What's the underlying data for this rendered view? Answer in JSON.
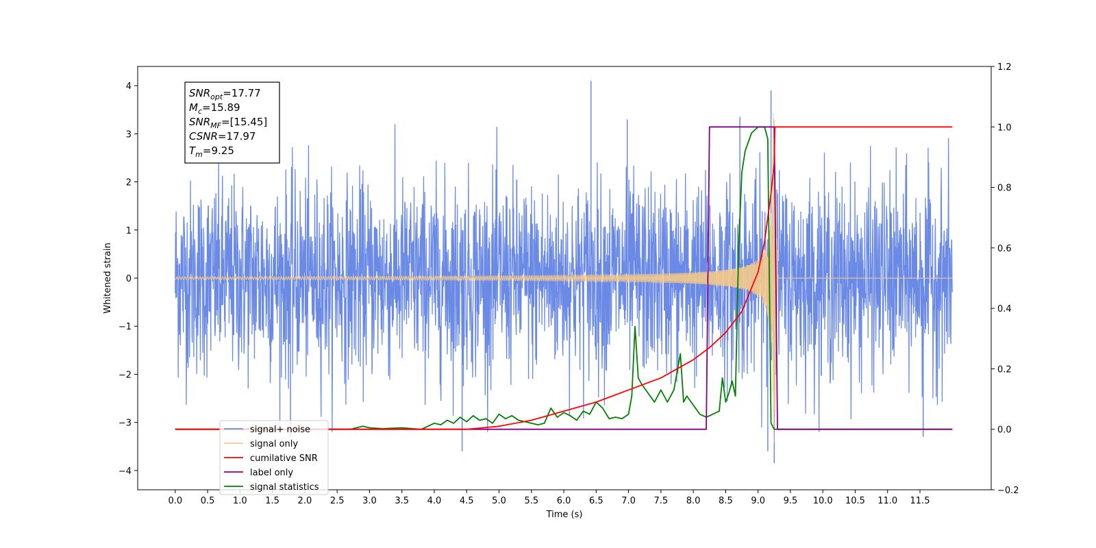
{
  "chart_data": {
    "type": "line",
    "xlabel": "Time (s)",
    "ylabel": "Whitened strain",
    "xlim": [
      -0.58,
      12.6
    ],
    "ylim_left": [
      -4.4,
      4.4
    ],
    "ylim_right": [
      -0.2,
      1.2
    ],
    "x_ticks": [
      "0.0",
      "0.5",
      "1.0",
      "1.5",
      "2.0",
      "2.5",
      "3.0",
      "3.5",
      "4.0",
      "4.5",
      "5.0",
      "5.5",
      "6.0",
      "6.5",
      "7.0",
      "7.5",
      "8.0",
      "8.5",
      "9.0",
      "9.5",
      "10.0",
      "10.5",
      "11.0",
      "11.5"
    ],
    "y_ticks_left": [
      "4",
      "3",
      "2",
      "1",
      "0",
      "−1",
      "−2",
      "−3",
      "−4"
    ],
    "y_ticks_right": [
      "1.2",
      "1.0",
      "0.8",
      "0.6",
      "0.4",
      "0.2",
      "0.0",
      "−0.2"
    ],
    "annotation": {
      "lines": [
        {
          "symbol": "SNR",
          "sub": "opt",
          "value": "=17.77"
        },
        {
          "symbol": "M",
          "sub": "c",
          "value": "=15.89"
        },
        {
          "symbol": "SNR",
          "sub": "MF",
          "value": "=[15.45]"
        },
        {
          "symbol": "CSNR",
          "sub": "",
          "value": "=17.97"
        },
        {
          "symbol": "T",
          "sub": "m",
          "value": "=9.25"
        }
      ]
    },
    "legend": {
      "placement": "lower-left",
      "entries": [
        {
          "label": "signal+ noise",
          "color": "#6a8ae6"
        },
        {
          "label": "signal only",
          "color": "#f5c98a"
        },
        {
          "label": "cumilative SNR",
          "color": "#ff0000"
        },
        {
          "label": "label only",
          "color": "#800080"
        },
        {
          "label": "signal statistics",
          "color": "#008000"
        }
      ]
    },
    "series": [
      {
        "name": "signal+ noise",
        "axis": "left",
        "color": "#6a8ae6",
        "description_range": [
          0.0,
          12.0
        ],
        "noise_sigma": 1.0,
        "peak_points": [
          [
            6.42,
            4.1
          ],
          [
            9.2,
            3.9
          ],
          [
            6.98,
            3.3
          ],
          [
            8.72,
            3.35
          ],
          [
            9.25,
            -3.85
          ],
          [
            9.15,
            -3.6
          ],
          [
            4.43,
            -3.6
          ],
          [
            1.78,
            -3.3
          ],
          [
            11.55,
            -3.3
          ]
        ]
      },
      {
        "name": "signal only",
        "axis": "left",
        "color": "#f5c98a",
        "merger_time": 9.25,
        "peak_amplitude": 3.5
      },
      {
        "name": "cumilative SNR",
        "axis": "right",
        "color": "#ff0000",
        "x": [
          0.0,
          4.5,
          5.0,
          5.5,
          6.0,
          6.5,
          7.0,
          7.5,
          8.0,
          8.25,
          8.5,
          8.75,
          9.0,
          9.1,
          9.2,
          9.25,
          9.26,
          12.0
        ],
        "y": [
          0.0,
          0.0,
          0.01,
          0.03,
          0.06,
          0.09,
          0.13,
          0.17,
          0.23,
          0.27,
          0.32,
          0.39,
          0.52,
          0.62,
          0.78,
          0.88,
          1.0,
          1.0
        ]
      },
      {
        "name": "label only",
        "axis": "right",
        "color": "#800080",
        "x": [
          0.0,
          8.2,
          8.25,
          9.25,
          9.3,
          12.0
        ],
        "y": [
          0.0,
          0.0,
          1.0,
          1.0,
          0.0,
          0.0
        ]
      },
      {
        "name": "signal statistics",
        "axis": "right",
        "color": "#008000",
        "x": [
          0.0,
          2.7,
          2.9,
          3.0,
          3.2,
          3.5,
          3.8,
          4.0,
          4.1,
          4.2,
          4.3,
          4.4,
          4.5,
          4.6,
          4.7,
          4.8,
          4.9,
          5.0,
          5.1,
          5.2,
          5.3,
          5.4,
          5.5,
          5.6,
          5.7,
          5.8,
          5.9,
          6.0,
          6.1,
          6.2,
          6.3,
          6.4,
          6.5,
          6.6,
          6.7,
          6.8,
          6.9,
          7.0,
          7.05,
          7.1,
          7.15,
          7.2,
          7.3,
          7.4,
          7.5,
          7.6,
          7.7,
          7.8,
          7.85,
          7.9,
          8.0,
          8.1,
          8.2,
          8.3,
          8.4,
          8.45,
          8.5,
          8.55,
          8.6,
          8.65,
          8.7,
          8.75,
          8.8,
          8.9,
          9.0,
          9.1,
          9.15,
          9.2,
          9.25,
          9.3,
          12.0
        ],
        "y": [
          0.0,
          0.0,
          0.01,
          0.005,
          0.002,
          0.005,
          0.0,
          0.02,
          0.015,
          0.03,
          0.02,
          0.04,
          0.025,
          0.045,
          0.03,
          0.035,
          0.02,
          0.05,
          0.035,
          0.045,
          0.03,
          0.025,
          0.02,
          0.015,
          0.02,
          0.07,
          0.04,
          0.055,
          0.045,
          0.03,
          0.06,
          0.05,
          0.09,
          0.07,
          0.035,
          0.04,
          0.035,
          0.05,
          0.11,
          0.34,
          0.17,
          0.15,
          0.12,
          0.09,
          0.13,
          0.09,
          0.13,
          0.25,
          0.09,
          0.11,
          0.08,
          0.05,
          0.04,
          0.05,
          0.06,
          0.17,
          0.09,
          0.12,
          0.16,
          0.11,
          0.6,
          0.85,
          0.92,
          0.98,
          1.0,
          1.0,
          0.96,
          0.02,
          0.0,
          0.0,
          0.0
        ]
      }
    ]
  }
}
